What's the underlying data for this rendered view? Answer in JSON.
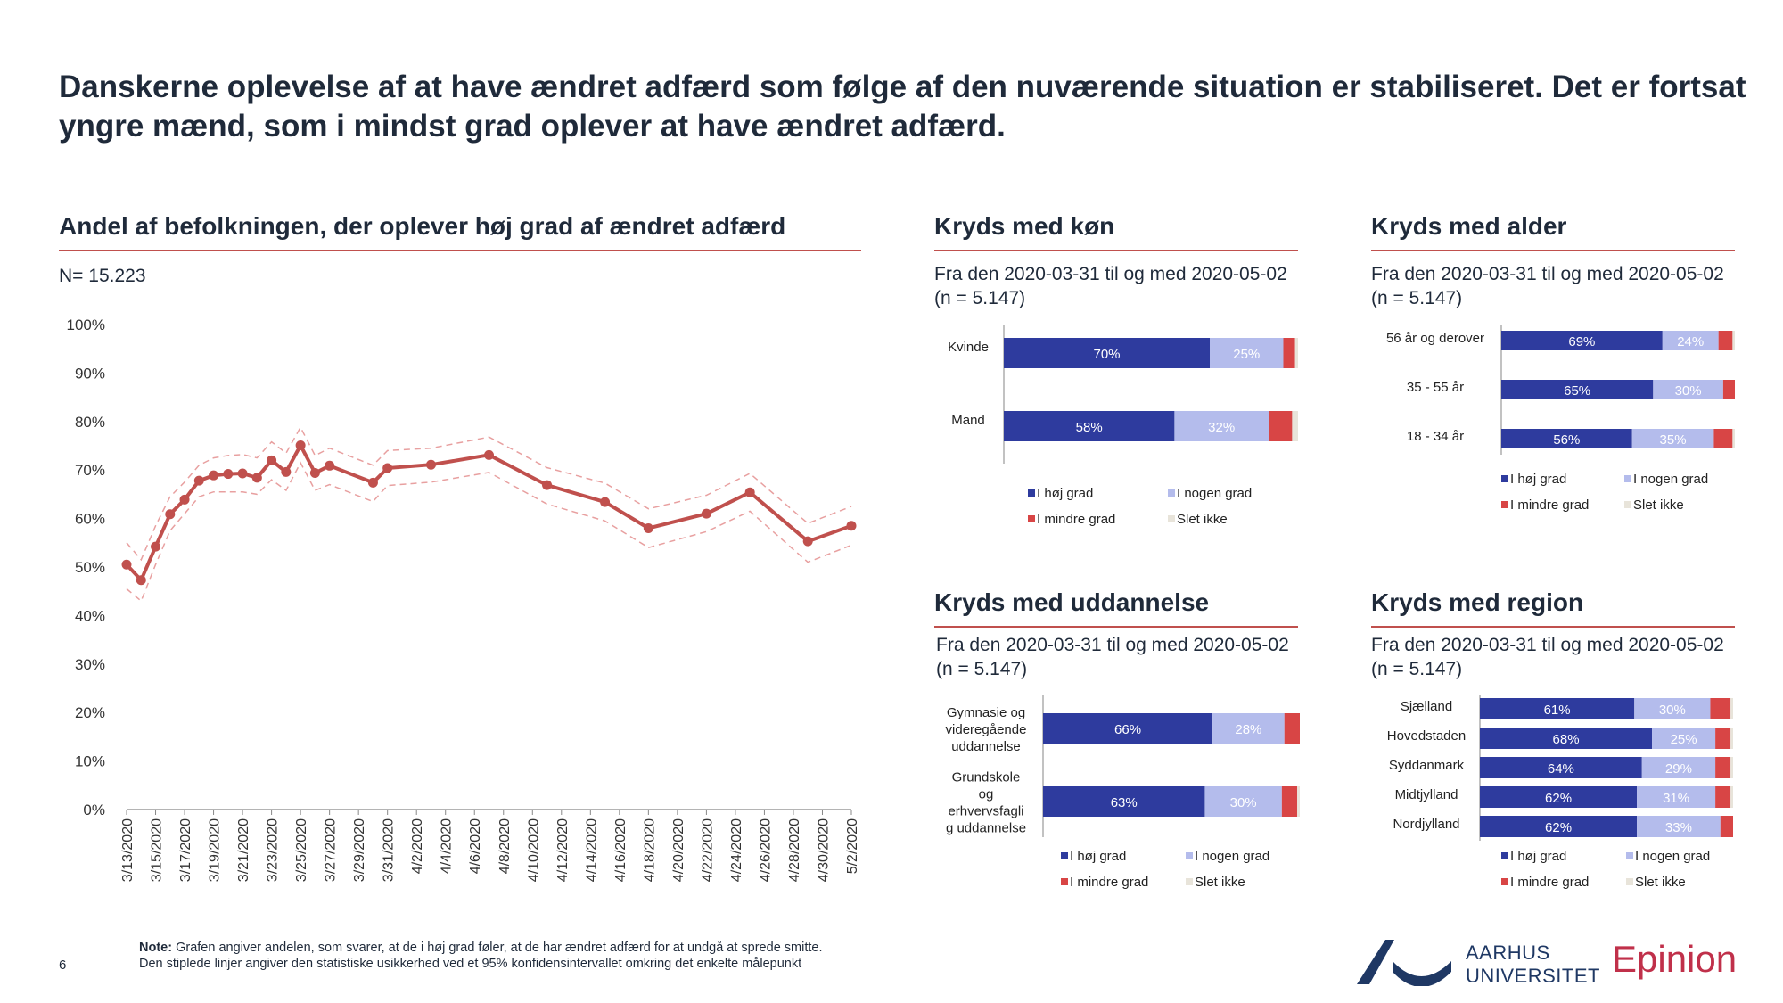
{
  "page": {
    "title": "Danskerne oplevelse af at have ændret adfærd som følge af den nuværende situation er stabiliseret. Det er fortsat yngre mænd, som i mindst grad oplever at have ændret adfærd.",
    "page_number": "6",
    "note_label": "Note:",
    "note_text": " Grafen angiver andelen, som svarer, at de i høj grad føler, at de har ændret adfærd for at undgå at sprede smitte.",
    "note_line2": "Den stiplede linjer angiver den statistiske usikkerhed ved et 95% konfidensintervallet omkring det enkelte målepunkt",
    "logo_au_line1": "AARHUS",
    "logo_au_line2": "UNIVERSITET",
    "logo_epinion": "Epinion"
  },
  "colors": {
    "line": "#c0504d",
    "ci": "#e8a0a0",
    "hoj": "#2e3b9e",
    "nogen": "#b4bcec",
    "mindre": "#d84545",
    "slet": "#e8e4da"
  },
  "main": {
    "title": "Andel af befolkningen, der oplever høj grad af ændret adfærd",
    "n_label": "N= 15.223"
  },
  "legend": {
    "hoj": "I høj grad",
    "nogen": "I nogen grad",
    "mindre": "I mindre grad",
    "slet": "Slet ikke"
  },
  "panels": {
    "kon": {
      "title": "Kryds med køn",
      "sub1": "Fra den 2020-03-31 til og med 2020-05-02",
      "sub2": "(n = 5.147)"
    },
    "alder": {
      "title": "Kryds med alder",
      "sub1": "Fra den 2020-03-31 til og med 2020-05-02",
      "sub2": "(n = 5.147)"
    },
    "udd": {
      "title": "Kryds med uddannelse",
      "sub1": "Fra den 2020-03-31 til og med 2020-05-02",
      "sub2": "(n = 5.147)"
    },
    "region": {
      "title": "Kryds med region",
      "sub1": "Fra den 2020-03-31 til og med 2020-05-02",
      "sub2": "(n = 5.147)"
    }
  },
  "chart_data": [
    {
      "type": "line",
      "title": "Andel af befolkningen, der oplever høj grad af ændret adfærd",
      "ylim": [
        0,
        100
      ],
      "yticks": [
        "0%",
        "10%",
        "20%",
        "30%",
        "40%",
        "50%",
        "60%",
        "70%",
        "80%",
        "90%",
        "100%"
      ],
      "xticks": [
        "3/13/2020",
        "3/15/2020",
        "3/17/2020",
        "3/19/2020",
        "3/21/2020",
        "3/23/2020",
        "3/25/2020",
        "3/27/2020",
        "3/29/2020",
        "3/31/2020",
        "4/2/2020",
        "4/4/2020",
        "4/6/2020",
        "4/8/2020",
        "4/10/2020",
        "4/12/2020",
        "4/14/2020",
        "4/16/2020",
        "4/18/2020",
        "4/20/2020",
        "4/22/2020",
        "4/24/2020",
        "4/26/2020",
        "4/28/2020",
        "4/30/2020",
        "5/2/2020"
      ],
      "x": [
        "3/13/2020",
        "3/14/2020",
        "3/15/2020",
        "3/16/2020",
        "3/17/2020",
        "3/18/2020",
        "3/19/2020",
        "3/20/2020",
        "3/21/2020",
        "3/22/2020",
        "3/23/2020",
        "3/24/2020",
        "3/25/2020",
        "3/26/2020",
        "3/27/2020",
        "3/30/2020",
        "3/31/2020",
        "4/3/2020",
        "4/7/2020",
        "4/11/2020",
        "4/15/2020",
        "4/18/2020",
        "4/22/2020",
        "4/25/2020",
        "4/29/2020",
        "5/2/2020"
      ],
      "series": [
        {
          "values": [
            50.5,
            47.3,
            54.2,
            60.9,
            63.9,
            67.8,
            68.9,
            69.2,
            69.3,
            68.4,
            72.0,
            69.6,
            75.1,
            69.4,
            70.9,
            67.4,
            70.4,
            71.1,
            73.1,
            66.9,
            63.4,
            58.0,
            61.0,
            65.4,
            55.3,
            58.5
          ]
        },
        {
          "values": [
            55.0,
            51.5,
            58.5,
            64.5,
            67.5,
            71.0,
            72.5,
            73.0,
            73.2,
            72.5,
            75.8,
            73.5,
            78.8,
            73.0,
            74.5,
            71.0,
            74.0,
            74.5,
            76.8,
            70.5,
            67.3,
            62.0,
            64.8,
            69.3,
            59.0,
            62.5
          ]
        },
        {
          "values": [
            45.5,
            43.0,
            50.5,
            57.5,
            61.0,
            64.5,
            65.5,
            65.5,
            65.5,
            65.0,
            68.0,
            65.8,
            71.5,
            65.8,
            67.0,
            63.5,
            66.8,
            67.5,
            69.5,
            63.0,
            59.5,
            54.0,
            57.3,
            61.5,
            51.0,
            54.5
          ]
        }
      ]
    },
    {
      "type": "bar",
      "title": "Kryds med køn",
      "categories": [
        "Kvinde",
        "Mand"
      ],
      "series": [
        {
          "name": "I høj grad",
          "values": [
            70,
            58
          ],
          "labels": [
            "70%",
            "58%"
          ]
        },
        {
          "name": "I nogen grad",
          "values": [
            25,
            32
          ],
          "labels": [
            "25%",
            "32%"
          ]
        },
        {
          "name": "I mindre grad",
          "values": [
            4,
            8
          ]
        },
        {
          "name": "Slet ikke",
          "values": [
            1,
            2
          ]
        }
      ]
    },
    {
      "type": "bar",
      "title": "Kryds med alder",
      "categories": [
        "56 år og derover",
        "35 - 55 år",
        "18 - 34 år"
      ],
      "series": [
        {
          "name": "I høj grad",
          "values": [
            69,
            65,
            56
          ],
          "labels": [
            "69%",
            "65%",
            "56%"
          ]
        },
        {
          "name": "I nogen grad",
          "values": [
            24,
            30,
            35
          ],
          "labels": [
            "24%",
            "30%",
            "35%"
          ]
        },
        {
          "name": "I mindre grad",
          "values": [
            6,
            5,
            8
          ]
        },
        {
          "name": "Slet ikke",
          "values": [
            1,
            0,
            1
          ]
        }
      ]
    },
    {
      "type": "bar",
      "title": "Kryds med uddannelse",
      "categories": [
        "Gymnasie og videregående uddannelse",
        "Grundskole og erhvervsfaglig uddannelse"
      ],
      "category_lines": [
        [
          "Gymnasie og",
          "videregående",
          "uddannelse"
        ],
        [
          "Grundskole",
          "og",
          "erhvervsfagli",
          "g uddannelse"
        ]
      ],
      "series": [
        {
          "name": "I høj grad",
          "values": [
            66,
            63
          ],
          "labels": [
            "66%",
            "63%"
          ]
        },
        {
          "name": "I nogen grad",
          "values": [
            28,
            30
          ],
          "labels": [
            "28%",
            "30%"
          ]
        },
        {
          "name": "I mindre grad",
          "values": [
            6,
            6
          ]
        },
        {
          "name": "Slet ikke",
          "values": [
            0,
            1
          ]
        }
      ]
    },
    {
      "type": "bar",
      "title": "Kryds med region",
      "categories": [
        "Sjælland",
        "Hovedstaden",
        "Syddanmark",
        "Midtjylland",
        "Nordjylland"
      ],
      "series": [
        {
          "name": "I høj grad",
          "values": [
            61,
            68,
            64,
            62,
            62
          ],
          "labels": [
            "61%",
            "68%",
            "64%",
            "62%",
            "62%"
          ]
        },
        {
          "name": "I nogen grad",
          "values": [
            30,
            25,
            29,
            31,
            33
          ],
          "labels": [
            "30%",
            "25%",
            "29%",
            "31%",
            "33%"
          ]
        },
        {
          "name": "I mindre grad",
          "values": [
            8,
            6,
            6,
            6,
            5
          ]
        },
        {
          "name": "Slet ikke",
          "values": [
            1,
            1,
            1,
            1,
            0
          ]
        }
      ]
    }
  ]
}
